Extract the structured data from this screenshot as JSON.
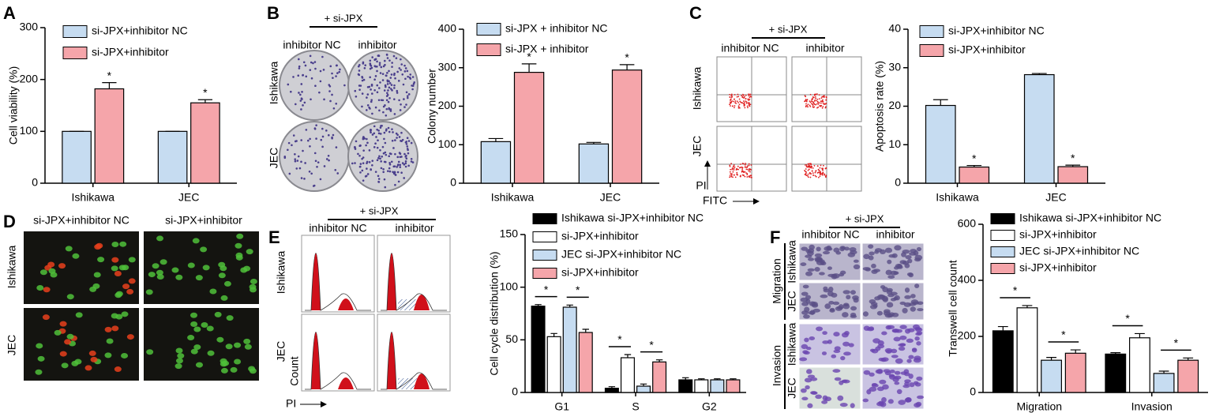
{
  "figure": {
    "panels": [
      "A",
      "B",
      "C",
      "D",
      "E",
      "F"
    ],
    "images": {
      "B": {
        "top": "+ si-JPX",
        "cols": [
          "inhibitor NC",
          "inhibitor"
        ],
        "rows": [
          "Ishikawa",
          "JEC"
        ]
      },
      "C": {
        "top": "+ si-JPX",
        "cols": [
          "inhibitor NC",
          "inhibitor"
        ],
        "rows": [
          "Ishikawa",
          "JEC"
        ],
        "yaxis": "PI",
        "xaxis": "FITC"
      },
      "D": {
        "cols": [
          "si-JPX+inhibitor NC",
          "si-JPX+inhibitor"
        ],
        "rows": [
          "Ishikawa",
          "JEC"
        ]
      },
      "E": {
        "top": "+ si-JPX",
        "cols": [
          "inhibitor NC",
          "inhibitor"
        ],
        "rows": [
          "Ishikawa",
          "JEC"
        ],
        "yaxis": "Count",
        "xaxis": "PI"
      },
      "F": {
        "top": "+ si-JPX",
        "cols": [
          "inhibitor NC",
          "inhibitor"
        ],
        "groups": [
          "Migration",
          "Invasion"
        ],
        "rows": [
          "Ishikawa",
          "JEC",
          "Ishikawa",
          "JEC"
        ]
      }
    }
  },
  "chart_data": [
    {
      "type": "bar",
      "ylabel": "Cell viability (%)",
      "categories": [
        "Ishikawa",
        "JEC"
      ],
      "ylim": [
        0,
        300
      ],
      "yticks": [
        0,
        100,
        200,
        300
      ],
      "legend": "upper left",
      "series": [
        {
          "name": "si-JPX+inhibitor NC",
          "color": "#c6dcf1",
          "values": [
            100,
            100
          ],
          "errors": [
            0,
            0
          ]
        },
        {
          "name": "si-JPX+inhibitor",
          "color": "#f5a5aa",
          "values": [
            182,
            155
          ],
          "errors": [
            12,
            6
          ],
          "significance": [
            "*",
            "*"
          ]
        }
      ]
    },
    {
      "type": "bar",
      "ylabel": "Colony number",
      "categories": [
        "Ishikawa",
        "JEC"
      ],
      "ylim": [
        0,
        400
      ],
      "yticks": [
        0,
        100,
        200,
        300,
        400
      ],
      "legend": "upper left",
      "series": [
        {
          "name": "si-JPX + inhibitor NC",
          "color": "#c6dcf1",
          "values": [
            108,
            102
          ],
          "errors": [
            8,
            4
          ]
        },
        {
          "name": "si-JPX + inhibitor",
          "color": "#f5a5aa",
          "values": [
            288,
            294
          ],
          "errors": [
            22,
            14
          ],
          "significance": [
            "*",
            "*"
          ]
        }
      ]
    },
    {
      "type": "bar",
      "ylabel": "Apoptosis rate (%)",
      "categories": [
        "Ishikawa",
        "JEC"
      ],
      "ylim": [
        0,
        40
      ],
      "yticks": [
        0,
        10,
        20,
        30,
        40
      ],
      "legend": "upper left",
      "series": [
        {
          "name": "si-JPX+inhibitor NC",
          "color": "#c6dcf1",
          "values": [
            20.2,
            28.2
          ],
          "errors": [
            1.5,
            0.3
          ]
        },
        {
          "name": "si-JPX+inhibitor",
          "color": "#f5a5aa",
          "values": [
            4.2,
            4.3
          ],
          "errors": [
            0.4,
            0.4
          ],
          "significance": [
            "*",
            "*"
          ]
        }
      ]
    },
    {
      "type": "bar",
      "ylabel": "Cell cycle distribution (%)",
      "categories": [
        "G1",
        "S",
        "G2"
      ],
      "ylim": [
        0,
        150
      ],
      "yticks": [
        0,
        50,
        100,
        150
      ],
      "legend": "upper left",
      "series": [
        {
          "name": "Ishikawa si-JPX+inhibitor NC",
          "color": "#000000",
          "values": [
            82,
            4,
            12
          ],
          "errors": [
            1.5,
            1.5,
            2
          ]
        },
        {
          "name": "si-JPX+inhibitor",
          "color": "#ffffff",
          "values": [
            53,
            33,
            12
          ],
          "errors": [
            3,
            3,
            1
          ],
          "significance": [
            "*",
            "*",
            null
          ]
        },
        {
          "name": "JEC si-JPX+inhibitor NC",
          "color": "#c6dcf1",
          "values": [
            81,
            6,
            12
          ],
          "errors": [
            2,
            2,
            1
          ]
        },
        {
          "name": "si-JPX+inhibitor",
          "color": "#f5a5aa",
          "values": [
            57,
            29,
            12
          ],
          "errors": [
            3,
            2,
            1
          ],
          "significance": [
            "*",
            "*",
            null
          ]
        }
      ]
    },
    {
      "type": "bar",
      "ylabel": "Transwell cell count",
      "categories": [
        "Migration",
        "Invasion"
      ],
      "ylim": [
        0,
        600
      ],
      "yticks": [
        0,
        200,
        400,
        600
      ],
      "legend": "upper left",
      "series": [
        {
          "name": "Ishikawa si-JPX+inhibitor NC",
          "color": "#000000",
          "values": [
            220,
            137
          ],
          "errors": [
            15,
            5
          ]
        },
        {
          "name": "si-JPX+inhibitor",
          "color": "#ffffff",
          "values": [
            302,
            195
          ],
          "errors": [
            8,
            15
          ],
          "significance": [
            "*",
            "*"
          ]
        },
        {
          "name": "JEC si-JPX+inhibitor NC",
          "color": "#c6dcf1",
          "values": [
            115,
            68
          ],
          "errors": [
            10,
            8
          ]
        },
        {
          "name": "si-JPX+inhibitor",
          "color": "#f5a5aa",
          "values": [
            140,
            115
          ],
          "errors": [
            12,
            8
          ],
          "significance": [
            "*",
            "*"
          ]
        }
      ]
    }
  ]
}
